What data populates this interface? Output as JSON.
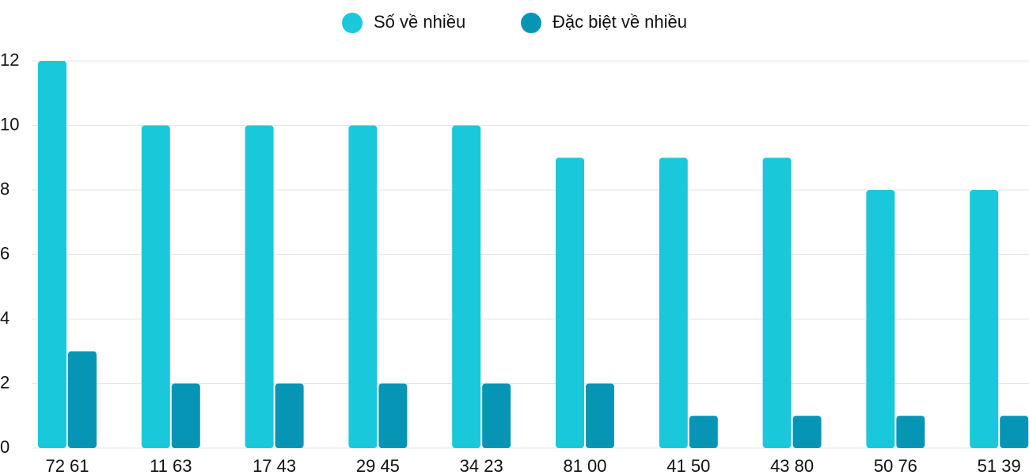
{
  "chart_data": {
    "type": "bar",
    "categories": [
      "72 61",
      "11 63",
      "17 43",
      "29 45",
      "34 23",
      "81 00",
      "41 50",
      "43 80",
      "50 76",
      "51 39"
    ],
    "series": [
      {
        "name": "Số về nhiều",
        "color": "#1ac8db",
        "values": [
          12,
          10,
          10,
          10,
          10,
          9,
          9,
          9,
          8,
          8
        ]
      },
      {
        "name": "Đặc biệt về nhiều",
        "color": "#0795b5",
        "values": [
          3,
          2,
          2,
          2,
          2,
          2,
          1,
          1,
          1,
          1
        ]
      }
    ],
    "ylim": [
      0,
      12
    ],
    "yticks": [
      0,
      2,
      4,
      6,
      8,
      10,
      12
    ],
    "grid": true,
    "legend": "top"
  }
}
